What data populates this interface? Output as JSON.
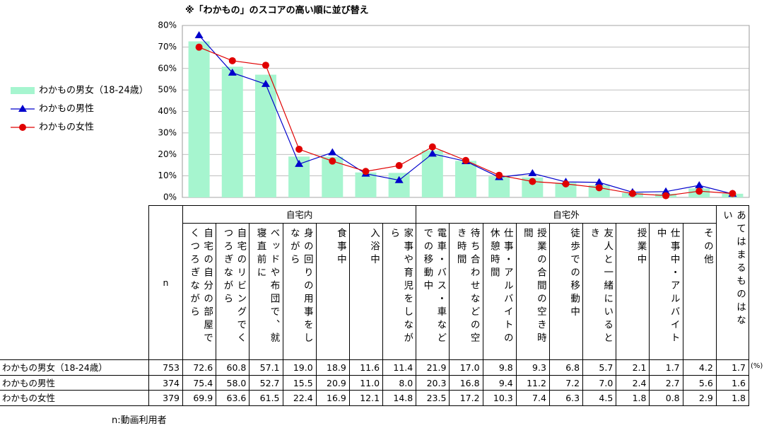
{
  "chart_data": {
    "type": "bar-line",
    "title": "※「わかもの」のスコアの高い順に並び替え",
    "categories": [
      "自宅の自分の部屋でくつろぎながら",
      "自宅のリビングでくつろぎながら",
      "ベッドや布団で、就寝直前に",
      "身の回りの用事をしながら",
      "食事中",
      "入浴中",
      "家事や育児をしながら",
      "電車・バス・車などでの移動中",
      "待ち合わせなどの空き時間",
      "仕事・アルバイトの休憩時間",
      "授業の合間の空き時間",
      "徒歩での移動中",
      "友人と一緒にいるとき",
      "授業中",
      "仕事中・アルバイト中",
      "その他",
      "あてはまるものはない"
    ],
    "groups": [
      {
        "label": "自宅内",
        "span": 7
      },
      {
        "label": "自宅外",
        "span": 9
      }
    ],
    "series": [
      {
        "name": "わかもの男女（18-24歳）",
        "kind": "bar",
        "color": "#a6f5cf",
        "n": 753,
        "values": [
          72.6,
          60.8,
          57.1,
          19.0,
          18.9,
          11.6,
          11.4,
          21.9,
          17.0,
          9.8,
          9.3,
          6.8,
          5.7,
          2.1,
          1.7,
          4.2,
          1.7
        ],
        "value_labels": [
          "72.6",
          "60.8",
          "57.1",
          "19.0",
          "18.9",
          "11.6",
          "11.4",
          "21.9",
          "17.0",
          "9.8",
          "9.3",
          "6.8",
          "5.7",
          "2.1",
          "1.7",
          "4.2",
          "1.7"
        ]
      },
      {
        "name": "わかもの男性",
        "kind": "line",
        "marker": "triangle",
        "color": "#0000cc",
        "n": 374,
        "values": [
          75.4,
          58.0,
          52.7,
          15.5,
          20.9,
          11.0,
          8.0,
          20.3,
          16.8,
          9.4,
          11.2,
          7.2,
          7.0,
          2.4,
          2.7,
          5.6,
          1.6
        ],
        "value_labels": [
          "75.4",
          "58.0",
          "52.7",
          "15.5",
          "20.9",
          "11.0",
          "8.0",
          "20.3",
          "16.8",
          "9.4",
          "11.2",
          "7.2",
          "7.0",
          "2.4",
          "2.7",
          "5.6",
          "1.6"
        ]
      },
      {
        "name": "わかもの女性",
        "kind": "line",
        "marker": "circle",
        "color": "#e00000",
        "n": 379,
        "values": [
          69.9,
          63.6,
          61.5,
          22.4,
          16.9,
          12.1,
          14.8,
          23.5,
          17.2,
          10.3,
          7.4,
          6.3,
          4.5,
          1.8,
          0.8,
          2.9,
          1.8
        ],
        "value_labels": [
          "69.9",
          "63.6",
          "61.5",
          "22.4",
          "16.9",
          "12.1",
          "14.8",
          "23.5",
          "17.2",
          "10.3",
          "7.4",
          "6.3",
          "4.5",
          "1.8",
          "0.8",
          "2.9",
          "1.8"
        ]
      }
    ],
    "ylim": [
      0,
      80
    ],
    "yticks": [
      {
        "value": 0,
        "label": "0%"
      },
      {
        "value": 10,
        "label": "10%"
      },
      {
        "value": 20,
        "label": "20%"
      },
      {
        "value": 30,
        "label": "30%"
      },
      {
        "value": 40,
        "label": "40%"
      },
      {
        "value": 50,
        "label": "50%"
      },
      {
        "value": 60,
        "label": "60%"
      },
      {
        "value": 70,
        "label": "70%"
      },
      {
        "value": 80,
        "label": "80%"
      }
    ],
    "grid": true,
    "legend": "left",
    "n_header": "n",
    "unit_note": "(%)",
    "footnote": "n:動画利用者"
  }
}
